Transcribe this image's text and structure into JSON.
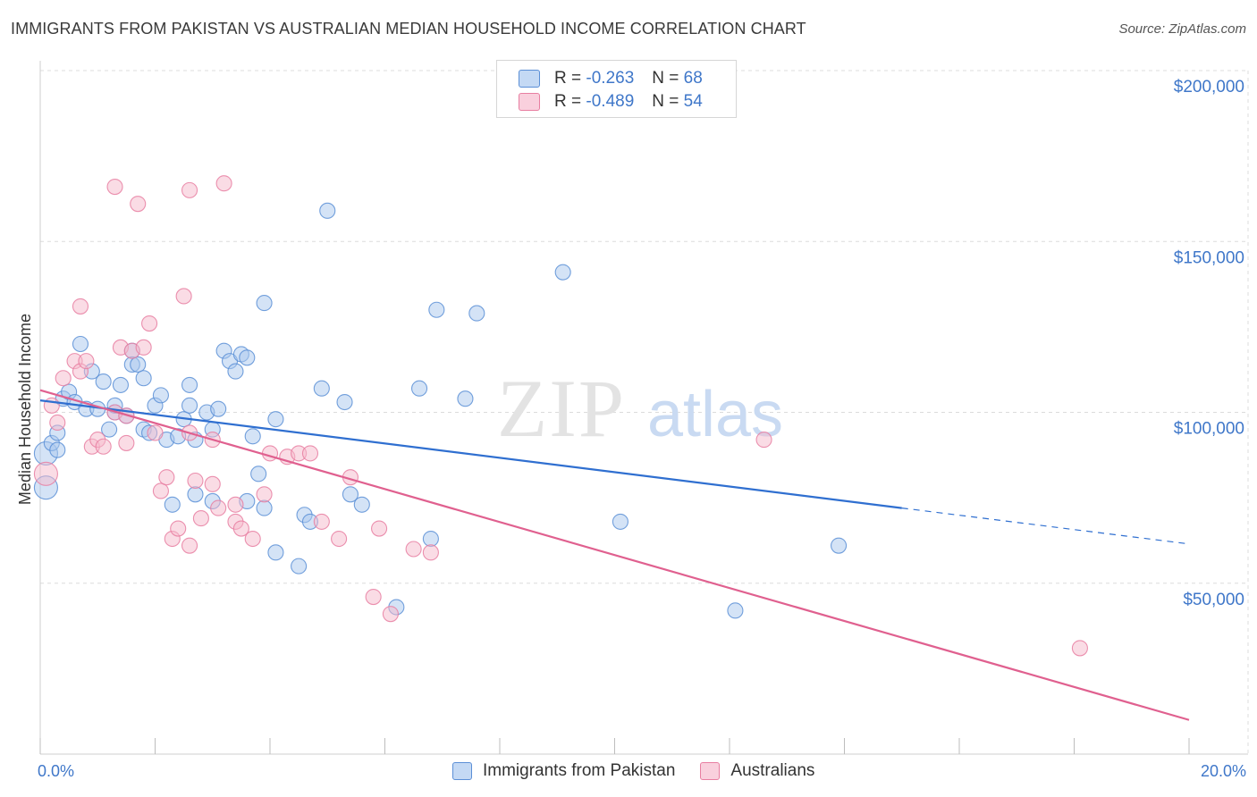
{
  "title": "IMMIGRANTS FROM PAKISTAN VS AUSTRALIAN MEDIAN HOUSEHOLD INCOME CORRELATION CHART",
  "source": "Source: ZipAtlas.com",
  "watermark": {
    "zip": "ZIP",
    "atlas": "atlas"
  },
  "legend": {
    "rows": [
      {
        "r_label": "R = ",
        "r_value": "-0.263",
        "n_label": "N = ",
        "n_value": "68"
      },
      {
        "r_label": "R = ",
        "r_value": "-0.489",
        "n_label": "N = ",
        "n_value": "54"
      }
    ]
  },
  "bottom_legend": [
    "Immigrants from Pakistan",
    "Australians"
  ],
  "colors": {
    "blue_fill": "#a9c8ee",
    "blue_stroke": "#5b8fd6",
    "blue_line": "#2f6fd0",
    "pink_fill": "#f6b9cc",
    "pink_stroke": "#e87ea1",
    "pink_line": "#e0608f",
    "tick_text": "#3f77c9",
    "grid": "#dcdcdc"
  },
  "chart_data": {
    "type": "scatter",
    "title": "IMMIGRANTS FROM PAKISTAN VS AUSTRALIAN MEDIAN HOUSEHOLD INCOME CORRELATION CHART",
    "xlabel": "",
    "ylabel": "Median Household Income",
    "xlim": [
      0,
      20
    ],
    "ylim": [
      0,
      200000
    ],
    "x_tick_labels": [
      "0.0%",
      "20.0%"
    ],
    "y_ticks": [
      50000,
      100000,
      150000,
      200000
    ],
    "y_tick_labels": [
      "$50,000",
      "$100,000",
      "$150,000",
      "$200,000"
    ],
    "grid": true,
    "legend_position": "top-center",
    "series": [
      {
        "name": "Immigrants from Pakistan",
        "color": "#a9c8ee",
        "points": [
          [
            0.1,
            78000
          ],
          [
            0.1,
            88000
          ],
          [
            0.2,
            91000
          ],
          [
            0.3,
            89000
          ],
          [
            0.3,
            94000
          ],
          [
            0.4,
            104000
          ],
          [
            0.5,
            106000
          ],
          [
            0.6,
            103000
          ],
          [
            0.7,
            120000
          ],
          [
            0.8,
            101000
          ],
          [
            0.9,
            112000
          ],
          [
            1.0,
            101000
          ],
          [
            1.1,
            109000
          ],
          [
            1.2,
            95000
          ],
          [
            1.3,
            100000
          ],
          [
            1.3,
            102000
          ],
          [
            1.4,
            108000
          ],
          [
            1.5,
            99000
          ],
          [
            1.6,
            118000
          ],
          [
            1.6,
            114000
          ],
          [
            1.7,
            114000
          ],
          [
            1.8,
            95000
          ],
          [
            1.8,
            110000
          ],
          [
            1.9,
            94000
          ],
          [
            2.0,
            102000
          ],
          [
            2.1,
            105000
          ],
          [
            2.2,
            92000
          ],
          [
            2.3,
            73000
          ],
          [
            2.4,
            93000
          ],
          [
            2.5,
            98000
          ],
          [
            2.6,
            108000
          ],
          [
            2.6,
            102000
          ],
          [
            2.7,
            76000
          ],
          [
            2.7,
            92000
          ],
          [
            2.9,
            100000
          ],
          [
            3.0,
            95000
          ],
          [
            3.0,
            74000
          ],
          [
            3.1,
            101000
          ],
          [
            3.2,
            118000
          ],
          [
            3.3,
            115000
          ],
          [
            3.4,
            112000
          ],
          [
            3.5,
            117000
          ],
          [
            3.6,
            74000
          ],
          [
            3.6,
            116000
          ],
          [
            3.7,
            93000
          ],
          [
            3.8,
            82000
          ],
          [
            3.9,
            132000
          ],
          [
            3.9,
            72000
          ],
          [
            4.1,
            59000
          ],
          [
            4.1,
            98000
          ],
          [
            4.5,
            55000
          ],
          [
            4.6,
            70000
          ],
          [
            4.7,
            68000
          ],
          [
            4.9,
            107000
          ],
          [
            5.0,
            159000
          ],
          [
            5.3,
            103000
          ],
          [
            5.4,
            76000
          ],
          [
            5.6,
            73000
          ],
          [
            6.2,
            43000
          ],
          [
            6.6,
            107000
          ],
          [
            6.8,
            63000
          ],
          [
            6.9,
            130000
          ],
          [
            7.4,
            104000
          ],
          [
            7.6,
            129000
          ],
          [
            9.1,
            141000
          ],
          [
            10.1,
            68000
          ],
          [
            12.1,
            42000
          ],
          [
            13.9,
            61000
          ]
        ]
      },
      {
        "name": "Australians",
        "color": "#f6b9cc",
        "points": [
          [
            0.1,
            82000
          ],
          [
            0.2,
            102000
          ],
          [
            0.3,
            97000
          ],
          [
            0.4,
            110000
          ],
          [
            0.6,
            115000
          ],
          [
            0.7,
            112000
          ],
          [
            0.7,
            131000
          ],
          [
            0.8,
            115000
          ],
          [
            0.9,
            90000
          ],
          [
            1.0,
            92000
          ],
          [
            1.1,
            90000
          ],
          [
            1.3,
            166000
          ],
          [
            1.3,
            100000
          ],
          [
            1.4,
            119000
          ],
          [
            1.5,
            91000
          ],
          [
            1.5,
            99000
          ],
          [
            1.6,
            118000
          ],
          [
            1.7,
            161000
          ],
          [
            1.8,
            119000
          ],
          [
            1.9,
            126000
          ],
          [
            2.0,
            94000
          ],
          [
            2.1,
            77000
          ],
          [
            2.2,
            81000
          ],
          [
            2.3,
            63000
          ],
          [
            2.4,
            66000
          ],
          [
            2.5,
            134000
          ],
          [
            2.6,
            61000
          ],
          [
            2.6,
            94000
          ],
          [
            2.6,
            165000
          ],
          [
            2.7,
            80000
          ],
          [
            2.8,
            69000
          ],
          [
            3.0,
            79000
          ],
          [
            3.0,
            92000
          ],
          [
            3.1,
            72000
          ],
          [
            3.2,
            167000
          ],
          [
            3.4,
            73000
          ],
          [
            3.4,
            68000
          ],
          [
            3.5,
            66000
          ],
          [
            3.7,
            63000
          ],
          [
            3.9,
            76000
          ],
          [
            4.0,
            88000
          ],
          [
            4.3,
            87000
          ],
          [
            4.5,
            88000
          ],
          [
            4.7,
            88000
          ],
          [
            4.9,
            68000
          ],
          [
            5.2,
            63000
          ],
          [
            5.4,
            81000
          ],
          [
            5.8,
            46000
          ],
          [
            5.9,
            66000
          ],
          [
            6.1,
            41000
          ],
          [
            6.5,
            60000
          ],
          [
            6.8,
            59000
          ],
          [
            12.6,
            92000
          ],
          [
            18.1,
            31000
          ]
        ]
      }
    ],
    "trend_lines": [
      {
        "series": "Immigrants from Pakistan",
        "x": [
          0,
          15
        ],
        "y": [
          103500,
          72000
        ],
        "dashed_extension": {
          "x": [
            15,
            20
          ],
          "y": [
            72000,
            61500
          ]
        }
      },
      {
        "series": "Australians",
        "x": [
          0,
          20
        ],
        "y": [
          106500,
          10000
        ]
      }
    ]
  }
}
